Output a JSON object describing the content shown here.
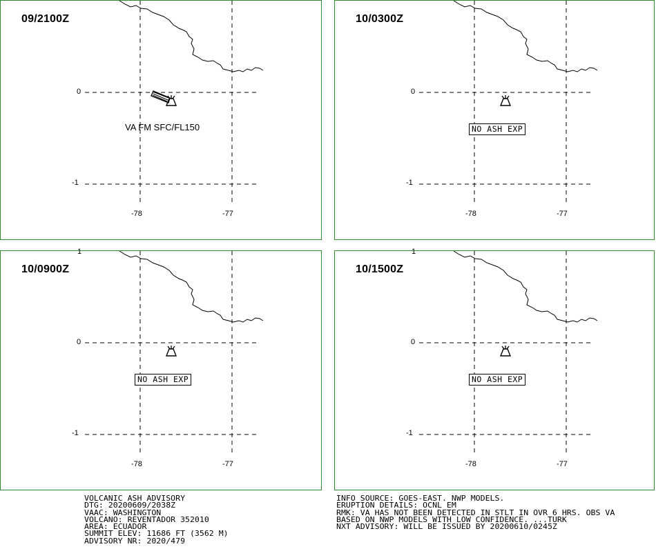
{
  "panels": [
    {
      "time": "09/2100Z",
      "label": "VA FM SFC/FL150"
    },
    {
      "time": "10/0300Z",
      "label": "NO ASH EXP"
    },
    {
      "time": "10/0900Z",
      "label": "NO ASH EXP"
    },
    {
      "time": "10/1500Z",
      "label": "NO ASH EXP"
    }
  ],
  "axis": {
    "lat_top": "1",
    "lat_mid": "0",
    "lat_bottom": "-1",
    "lon_left": "-78",
    "lon_right": "-77"
  },
  "advisory_left": [
    "VOLCANIC ASH ADVISORY",
    "DTG: 20200609/2038Z",
    "VAAC: WASHINGTON",
    "VOLCANO: REVENTADOR 352010",
    "AREA: ECUADOR",
    "SUMMIT ELEV: 11686 FT (3562 M)",
    "ADVISORY NR: 2020/479"
  ],
  "advisory_right": [
    "INFO SOURCE: GOES-EAST. NWP MODELS.",
    "ERUPTION DETAILS: OCNL EM",
    "RMK: VA HAS NOT BEEN DETECTED IN STLT IN OVR 6 HRS. OBS VA",
    "BASED ON NWP MODELS WITH LOW CONFIDENCE. ...TURK",
    "NXT ADVISORY: WILL BE ISSUED BY 20200610/0245Z"
  ],
  "colors": {
    "panel_border": "#2e8b2e"
  },
  "icons": {
    "volcano": "volcano-icon"
  }
}
